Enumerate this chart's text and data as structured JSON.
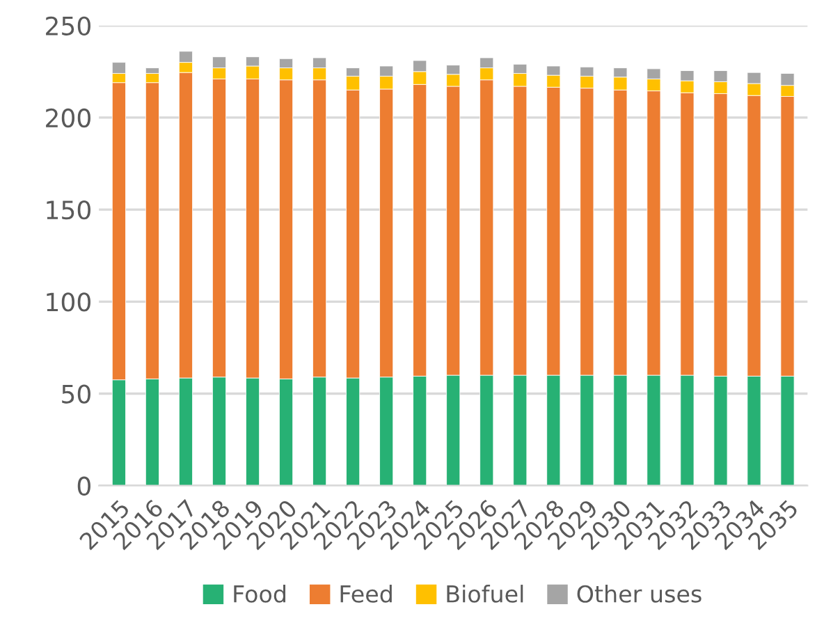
{
  "chart_data": {
    "type": "bar",
    "stacked": true,
    "categories": [
      "2015",
      "2016",
      "2017",
      "2018",
      "2019",
      "2020",
      "2021",
      "2022",
      "2023",
      "2024",
      "2025",
      "2026",
      "2027",
      "2028",
      "2029",
      "2030",
      "2031",
      "2032",
      "2033",
      "2034",
      "2035"
    ],
    "series": [
      {
        "name": "Food",
        "color": "#27b174",
        "values": [
          57.5,
          58,
          58.5,
          59,
          58.5,
          58,
          59,
          58.5,
          59,
          59.5,
          60,
          60,
          60,
          60,
          60,
          60,
          60,
          60,
          59.5,
          59.5,
          59.5
        ]
      },
      {
        "name": "Feed",
        "color": "#ed7d31",
        "values": [
          161.5,
          161,
          166,
          162,
          162.5,
          162.5,
          161.5,
          156.5,
          156.5,
          158.5,
          157,
          160.5,
          157,
          156.5,
          156,
          155,
          154.5,
          153.5,
          153.5,
          152.5,
          152
        ]
      },
      {
        "name": "Biofuel",
        "color": "#ffc000",
        "values": [
          5,
          5,
          5.5,
          6,
          7,
          6.5,
          6.5,
          7.5,
          7,
          7,
          6.5,
          6.5,
          7,
          6.5,
          6.5,
          7,
          6.5,
          6.5,
          6.5,
          6.5,
          6
        ]
      },
      {
        "name": "Other uses",
        "color": "#a5a5a5",
        "values": [
          6,
          3,
          6,
          6,
          5,
          5,
          5.5,
          4.5,
          5.5,
          6,
          5,
          5.5,
          5,
          5,
          5,
          5,
          5.5,
          5.5,
          6,
          6,
          6.5
        ]
      }
    ],
    "ylim": [
      0,
      250
    ],
    "yticks": [
      0,
      50,
      100,
      150,
      200,
      250
    ],
    "grid": "y",
    "legend": "bottom"
  }
}
